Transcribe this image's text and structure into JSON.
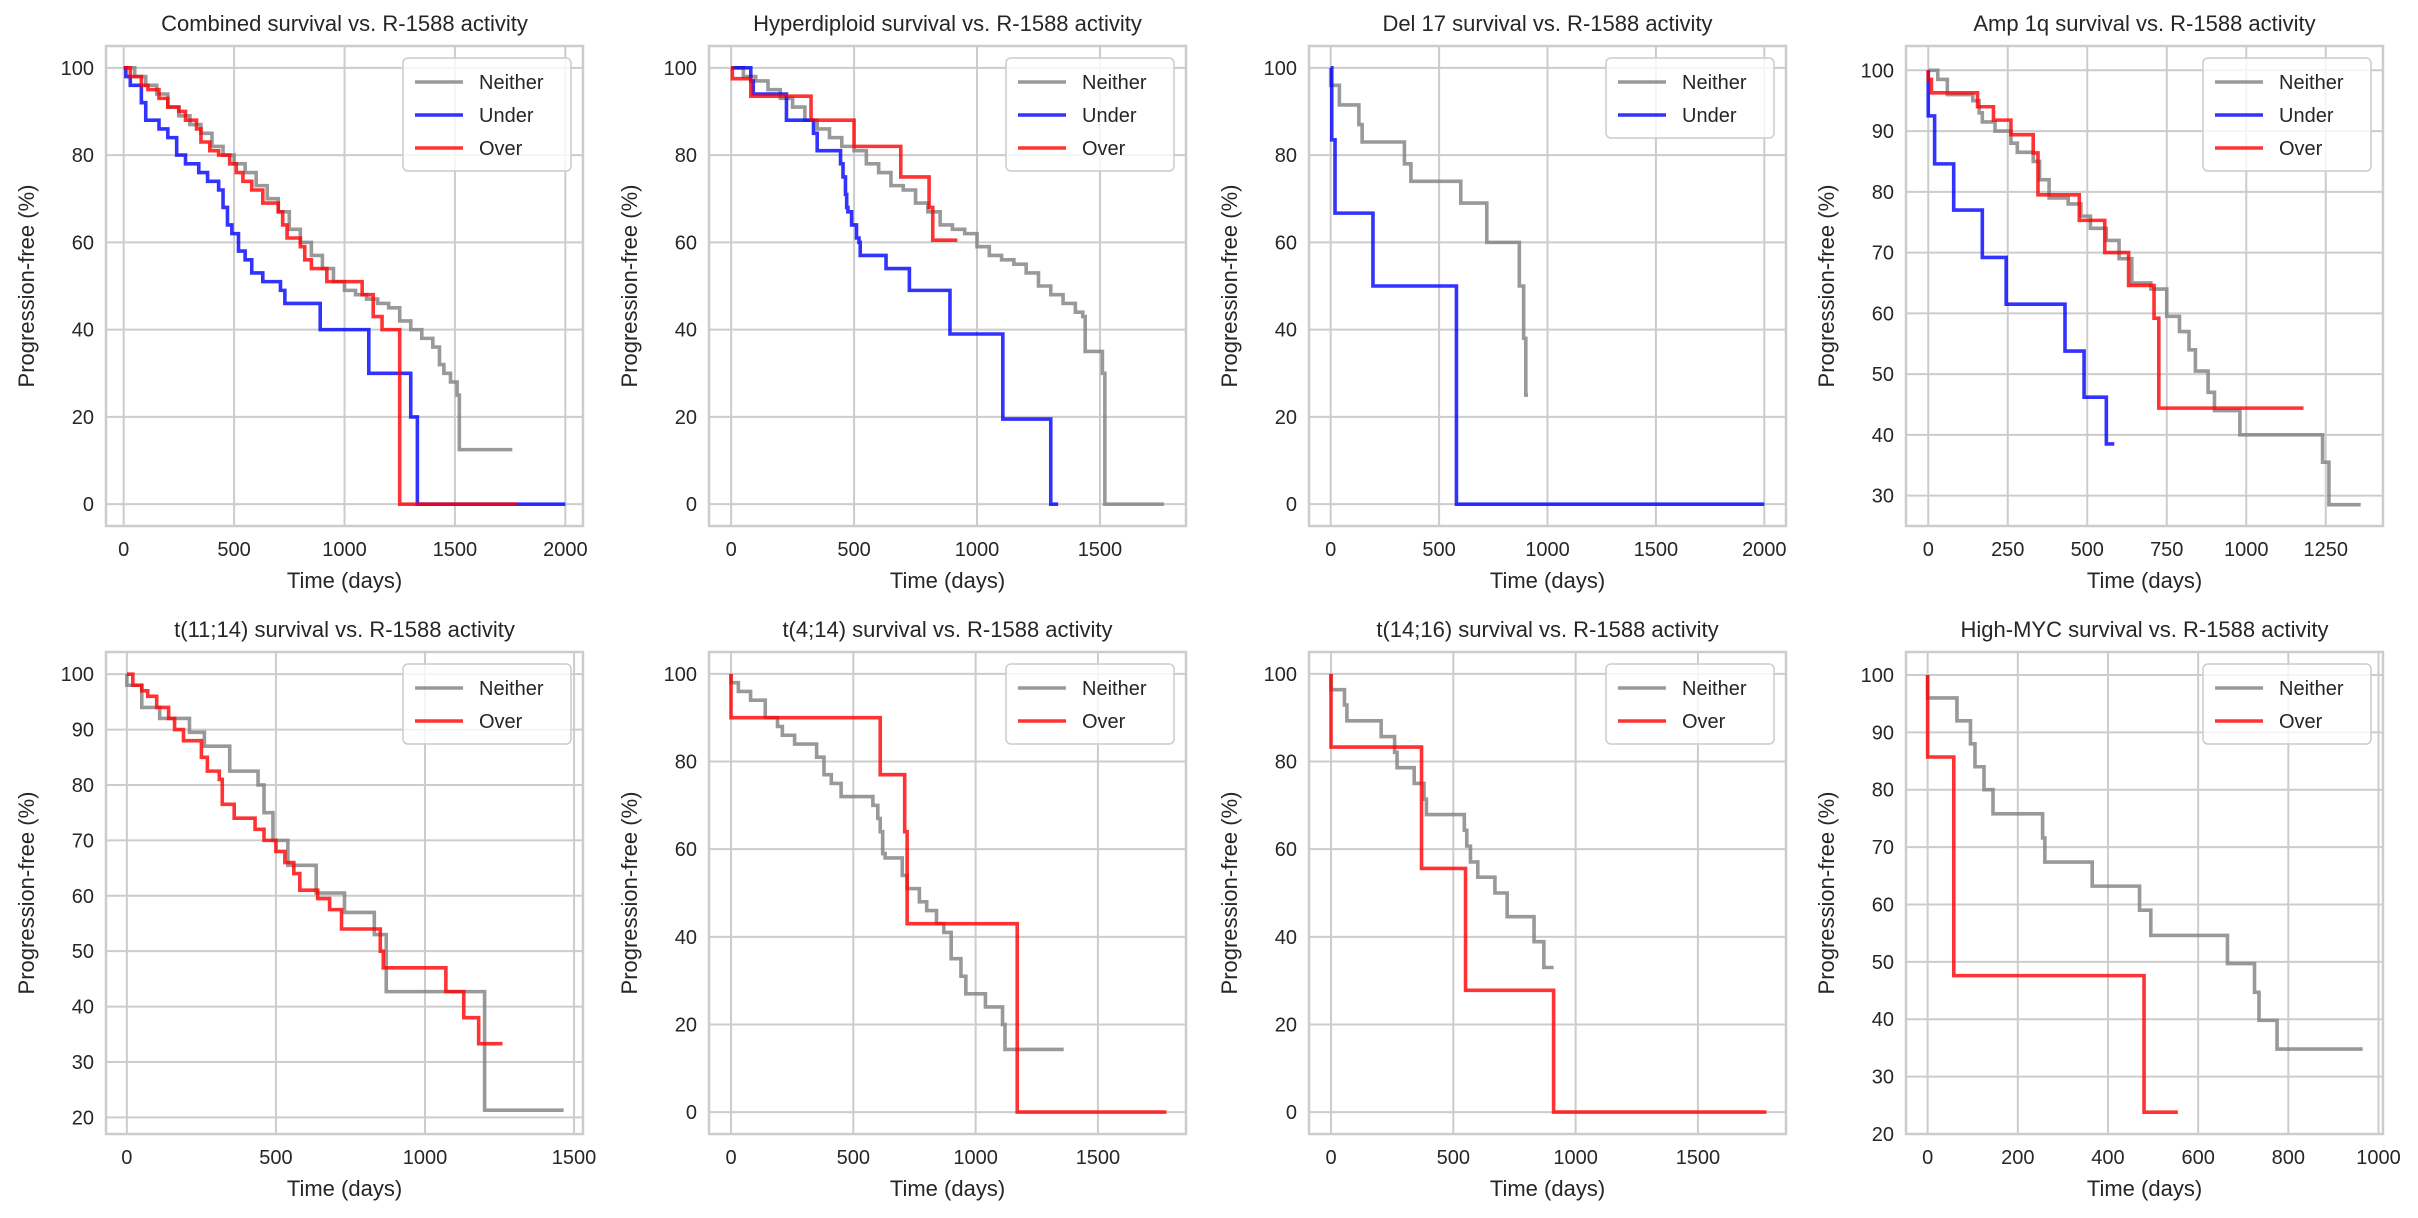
{
  "figure": {
    "colors": {
      "Neither": "#808080",
      "Under": "#0000ff",
      "Over": "#ff0000"
    }
  },
  "chart_data": [
    {
      "type": "line",
      "step": true,
      "title": "Combined survival vs. R-1588 activity",
      "xlabel": "Time (days)",
      "ylabel": "Progression-free (%)",
      "xlim": [
        -80,
        2080
      ],
      "ylim": [
        -5,
        105
      ],
      "xticks": [
        0,
        500,
        1000,
        1500,
        2000
      ],
      "yticks": [
        0,
        20,
        40,
        60,
        80,
        100
      ],
      "grid": true,
      "legend": {
        "position": "top-right",
        "entries": [
          "Neither",
          "Under",
          "Over"
        ]
      },
      "series": [
        {
          "name": "Neither",
          "x": [
            0,
            50,
            100,
            150,
            200,
            250,
            300,
            350,
            400,
            450,
            500,
            550,
            600,
            650,
            700,
            750,
            800,
            850,
            900,
            950,
            1000,
            1050,
            1100,
            1150,
            1200,
            1250,
            1300,
            1350,
            1400,
            1430,
            1450,
            1480,
            1510,
            1520,
            1760
          ],
          "y": [
            100,
            98,
            96,
            94,
            91,
            89,
            87,
            85,
            82,
            80,
            78,
            76,
            73,
            70,
            67,
            63,
            60,
            57,
            54,
            51,
            49,
            48,
            47,
            46,
            45,
            42,
            40,
            38,
            36,
            32,
            30,
            28,
            25,
            12.5,
            12.5
          ]
        },
        {
          "name": "Under",
          "x": [
            0,
            10,
            30,
            80,
            100,
            160,
            200,
            240,
            280,
            340,
            380,
            430,
            450,
            470,
            490,
            520,
            550,
            580,
            630,
            710,
            730,
            890,
            1110,
            1300,
            1330,
            2000
          ],
          "y": [
            100,
            98,
            96,
            92,
            88,
            86,
            84,
            80,
            78,
            76,
            74,
            72,
            68,
            64,
            62,
            58,
            56,
            53,
            51,
            49,
            46,
            40,
            30,
            20,
            0,
            0
          ]
        },
        {
          "name": "Over",
          "x": [
            0,
            30,
            80,
            110,
            160,
            200,
            250,
            280,
            330,
            350,
            390,
            430,
            480,
            510,
            540,
            580,
            630,
            700,
            720,
            740,
            800,
            820,
            850,
            920,
            1060,
            1080,
            1130,
            1170,
            1250,
            1780
          ],
          "y": [
            100,
            98,
            96,
            95,
            93,
            91,
            90,
            88,
            86,
            83,
            81,
            80,
            78,
            76,
            74,
            72,
            69,
            67,
            64,
            61,
            59,
            56,
            54,
            51,
            51,
            48,
            43,
            40,
            0,
            0
          ]
        }
      ]
    },
    {
      "type": "line",
      "step": true,
      "title": "Hyperdiploid survival vs. R-1588 activity",
      "xlabel": "Time (days)",
      "ylabel": "Progression-free (%)",
      "xlim": [
        -90,
        1850
      ],
      "ylim": [
        -5,
        105
      ],
      "xticks": [
        0,
        500,
        1000,
        1500
      ],
      "yticks": [
        0,
        20,
        40,
        60,
        80,
        100
      ],
      "grid": true,
      "legend": {
        "position": "top-right",
        "entries": [
          "Neither",
          "Under",
          "Over"
        ]
      },
      "series": [
        {
          "name": "Neither",
          "x": [
            0,
            50,
            100,
            150,
            200,
            250,
            300,
            350,
            400,
            450,
            500,
            550,
            600,
            650,
            700,
            750,
            800,
            850,
            900,
            950,
            1000,
            1050,
            1100,
            1150,
            1200,
            1250,
            1300,
            1350,
            1400,
            1430,
            1440,
            1500,
            1510,
            1520,
            1760
          ],
          "y": [
            100,
            98,
            97,
            95,
            93,
            91,
            88,
            86,
            84,
            82,
            81,
            78,
            76,
            73,
            72,
            69,
            67,
            64,
            63,
            62,
            59,
            57,
            56,
            55,
            53,
            50,
            48,
            46,
            44,
            43,
            35,
            35,
            30,
            0,
            0
          ]
        },
        {
          "name": "Under",
          "x": [
            0,
            80,
            90,
            225,
            335,
            350,
            445,
            455,
            465,
            470,
            475,
            490,
            510,
            520,
            525,
            630,
            725,
            890,
            1105,
            1300,
            1330
          ],
          "y": [
            100,
            97,
            94,
            88,
            85,
            81,
            78,
            75,
            71,
            68,
            67,
            64,
            61,
            60,
            57,
            54,
            49,
            39,
            19.5,
            0,
            0
          ]
        },
        {
          "name": "Over",
          "x": [
            0,
            5,
            80,
            325,
            500,
            690,
            805,
            820,
            920
          ],
          "y": [
            100,
            97.5,
            93.5,
            88,
            82,
            75,
            68,
            60.5,
            60.5
          ]
        }
      ]
    },
    {
      "type": "line",
      "step": true,
      "title": "Del 17 survival vs. R-1588 activity",
      "xlabel": "Time (days)",
      "ylabel": "Progression-free (%)",
      "xlim": [
        -100,
        2100
      ],
      "ylim": [
        -5,
        105
      ],
      "xticks": [
        0,
        500,
        1000,
        1500,
        2000
      ],
      "yticks": [
        0,
        20,
        40,
        60,
        80,
        100
      ],
      "grid": true,
      "legend": {
        "position": "top-right",
        "entries": [
          "Neither",
          "Under"
        ]
      },
      "series": [
        {
          "name": "Neither",
          "x": [
            0,
            40,
            130,
            145,
            340,
            370,
            600,
            720,
            870,
            890,
            900,
            910
          ],
          "y": [
            96,
            91.5,
            87,
            83,
            78,
            74,
            69,
            60,
            50,
            38,
            25,
            25
          ]
        },
        {
          "name": "Under",
          "x": [
            0,
            5,
            20,
            195,
            580,
            2000
          ],
          "y": [
            100,
            83.5,
            66.7,
            50,
            0,
            0
          ]
        }
      ]
    },
    {
      "type": "line",
      "step": true,
      "title": "Amp 1q survival vs. R-1588 activity",
      "xlabel": "Time (days)",
      "ylabel": "Progression-free (%)",
      "xlim": [
        -70,
        1430
      ],
      "ylim": [
        25,
        104
      ],
      "xticks": [
        0,
        250,
        500,
        750,
        1000,
        1250
      ],
      "yticks": [
        30,
        40,
        50,
        60,
        70,
        80,
        90,
        100
      ],
      "grid": true,
      "legend": {
        "position": "top-right",
        "entries": [
          "Neither",
          "Under",
          "Over"
        ]
      },
      "series": [
        {
          "name": "Neither",
          "x": [
            0,
            30,
            60,
            140,
            160,
            170,
            210,
            260,
            280,
            330,
            350,
            380,
            440,
            480,
            510,
            560,
            600,
            640,
            700,
            750,
            790,
            820,
            840,
            880,
            900,
            980,
            1240,
            1260,
            1360
          ],
          "y": [
            100,
            98.5,
            96,
            95,
            93,
            91.5,
            90,
            88,
            86.5,
            85,
            82,
            79,
            78,
            76,
            74,
            72,
            69,
            65,
            64,
            59.5,
            57,
            54,
            50.5,
            47,
            44,
            40,
            35.5,
            28.5,
            28.5
          ]
        },
        {
          "name": "Under",
          "x": [
            0,
            20,
            80,
            170,
            245,
            430,
            490,
            560,
            585
          ],
          "y": [
            92.5,
            84.6,
            77,
            69.2,
            61.5,
            53.8,
            46.2,
            38.5,
            38.5
          ]
        },
        {
          "name": "Over",
          "x": [
            0,
            10,
            155,
            205,
            260,
            330,
            345,
            475,
            555,
            630,
            710,
            725,
            1180
          ],
          "y": [
            98.5,
            96.3,
            94,
            91.8,
            89.4,
            86.4,
            79.5,
            75.3,
            70,
            64.6,
            59.2,
            44.4,
            44.4
          ]
        }
      ]
    },
    {
      "type": "line",
      "step": true,
      "title": "t(11;14) survival vs. R-1588 activity",
      "xlabel": "Time (days)",
      "ylabel": "Progression-free (%)",
      "xlim": [
        -70,
        1530
      ],
      "ylim": [
        17,
        104
      ],
      "xticks": [
        0,
        500,
        1000,
        1500
      ],
      "yticks": [
        20,
        30,
        40,
        50,
        60,
        70,
        80,
        90,
        100
      ],
      "grid": true,
      "legend": {
        "position": "top-right",
        "entries": [
          "Neither",
          "Over"
        ]
      },
      "series": [
        {
          "name": "Neither",
          "x": [
            0,
            50,
            110,
            210,
            260,
            345,
            440,
            460,
            490,
            540,
            635,
            730,
            830,
            870,
            1200,
            1465
          ],
          "y": [
            98,
            94,
            92,
            89.5,
            87,
            82.5,
            80,
            75,
            70,
            65.5,
            60.5,
            57,
            53,
            42.7,
            21.3,
            21.3
          ]
        },
        {
          "name": "Over",
          "x": [
            0,
            20,
            50,
            70,
            100,
            140,
            160,
            190,
            250,
            270,
            310,
            320,
            360,
            430,
            460,
            500,
            530,
            560,
            580,
            640,
            680,
            720,
            850,
            860,
            1070,
            1130,
            1180,
            1260
          ],
          "y": [
            100,
            98,
            97,
            96,
            94,
            92,
            90,
            88,
            85,
            82.5,
            81,
            76.5,
            74,
            72,
            70,
            68,
            66,
            64,
            61,
            59.5,
            57.5,
            54,
            50,
            47,
            42.7,
            38,
            33.3,
            33.3
          ]
        }
      ]
    },
    {
      "type": "line",
      "step": true,
      "title": "t(4;14) survival vs. R-1588 activity",
      "xlabel": "Time (days)",
      "ylabel": "Progression-free (%)",
      "xlim": [
        -90,
        1860
      ],
      "ylim": [
        -5,
        105
      ],
      "xticks": [
        0,
        500,
        1000,
        1500
      ],
      "yticks": [
        0,
        20,
        40,
        60,
        80,
        100
      ],
      "grid": true,
      "legend": {
        "position": "top-right",
        "entries": [
          "Neither",
          "Over"
        ]
      },
      "series": [
        {
          "name": "Neither",
          "x": [
            0,
            30,
            80,
            140,
            190,
            210,
            260,
            350,
            380,
            410,
            450,
            580,
            600,
            610,
            620,
            630,
            700,
            720,
            770,
            800,
            840,
            870,
            900,
            940,
            960,
            1040,
            1110,
            1120,
            1360
          ],
          "y": [
            98,
            96,
            94,
            90,
            88,
            86,
            84,
            81,
            77,
            75,
            72,
            70,
            67,
            64,
            59,
            58,
            54,
            51,
            48,
            46,
            43,
            41,
            35,
            31,
            27,
            24,
            20,
            14.3,
            14.3
          ]
        },
        {
          "name": "Over",
          "x": [
            0,
            610,
            710,
            720,
            1170,
            1780
          ],
          "y": [
            90,
            77,
            64,
            43,
            0,
            0
          ]
        }
      ]
    },
    {
      "type": "line",
      "step": true,
      "title": "t(14;16) survival vs. R-1588 activity",
      "xlabel": "Time (days)",
      "ylabel": "Progression-free (%)",
      "xlim": [
        -90,
        1860
      ],
      "ylim": [
        -5,
        105
      ],
      "xticks": [
        0,
        500,
        1000,
        1500
      ],
      "yticks": [
        0,
        20,
        40,
        60,
        80,
        100
      ],
      "grid": true,
      "legend": {
        "position": "top-right",
        "entries": [
          "Neither",
          "Over"
        ]
      },
      "series": [
        {
          "name": "Neither",
          "x": [
            0,
            55,
            65,
            205,
            260,
            270,
            340,
            380,
            390,
            545,
            555,
            570,
            600,
            670,
            720,
            830,
            870,
            910
          ],
          "y": [
            96.4,
            92.9,
            89.3,
            85.7,
            82.1,
            78.6,
            75,
            71.4,
            67.9,
            64.3,
            60.7,
            57.1,
            53.6,
            50,
            44.6,
            38.9,
            33,
            33
          ]
        },
        {
          "name": "Over",
          "x": [
            0,
            370,
            550,
            910,
            1780
          ],
          "y": [
            83.3,
            55.6,
            27.8,
            0,
            0
          ]
        }
      ]
    },
    {
      "type": "line",
      "step": true,
      "title": "High-MYC survival vs. R-1588 activity",
      "xlabel": "Time (days)",
      "ylabel": "Progression-free (%)",
      "xlim": [
        -48,
        1010
      ],
      "ylim": [
        20,
        104
      ],
      "xticks": [
        0,
        200,
        400,
        600,
        800,
        1000
      ],
      "yticks": [
        20,
        30,
        40,
        50,
        60,
        70,
        80,
        90,
        100
      ],
      "grid": true,
      "legend": {
        "position": "top-right",
        "entries": [
          "Neither",
          "Over"
        ]
      },
      "series": [
        {
          "name": "Neither",
          "x": [
            0,
            65,
            95,
            105,
            125,
            145,
            255,
            260,
            365,
            470,
            495,
            665,
            725,
            735,
            775,
            965
          ],
          "y": [
            96,
            92,
            88,
            84,
            80,
            75.8,
            71.6,
            67.4,
            63.2,
            59,
            54.6,
            49.7,
            44.7,
            39.8,
            34.8,
            34.8
          ]
        },
        {
          "name": "Over",
          "x": [
            0,
            58,
            480,
            555
          ],
          "y": [
            85.7,
            47.6,
            23.8,
            23.8
          ]
        }
      ]
    }
  ]
}
